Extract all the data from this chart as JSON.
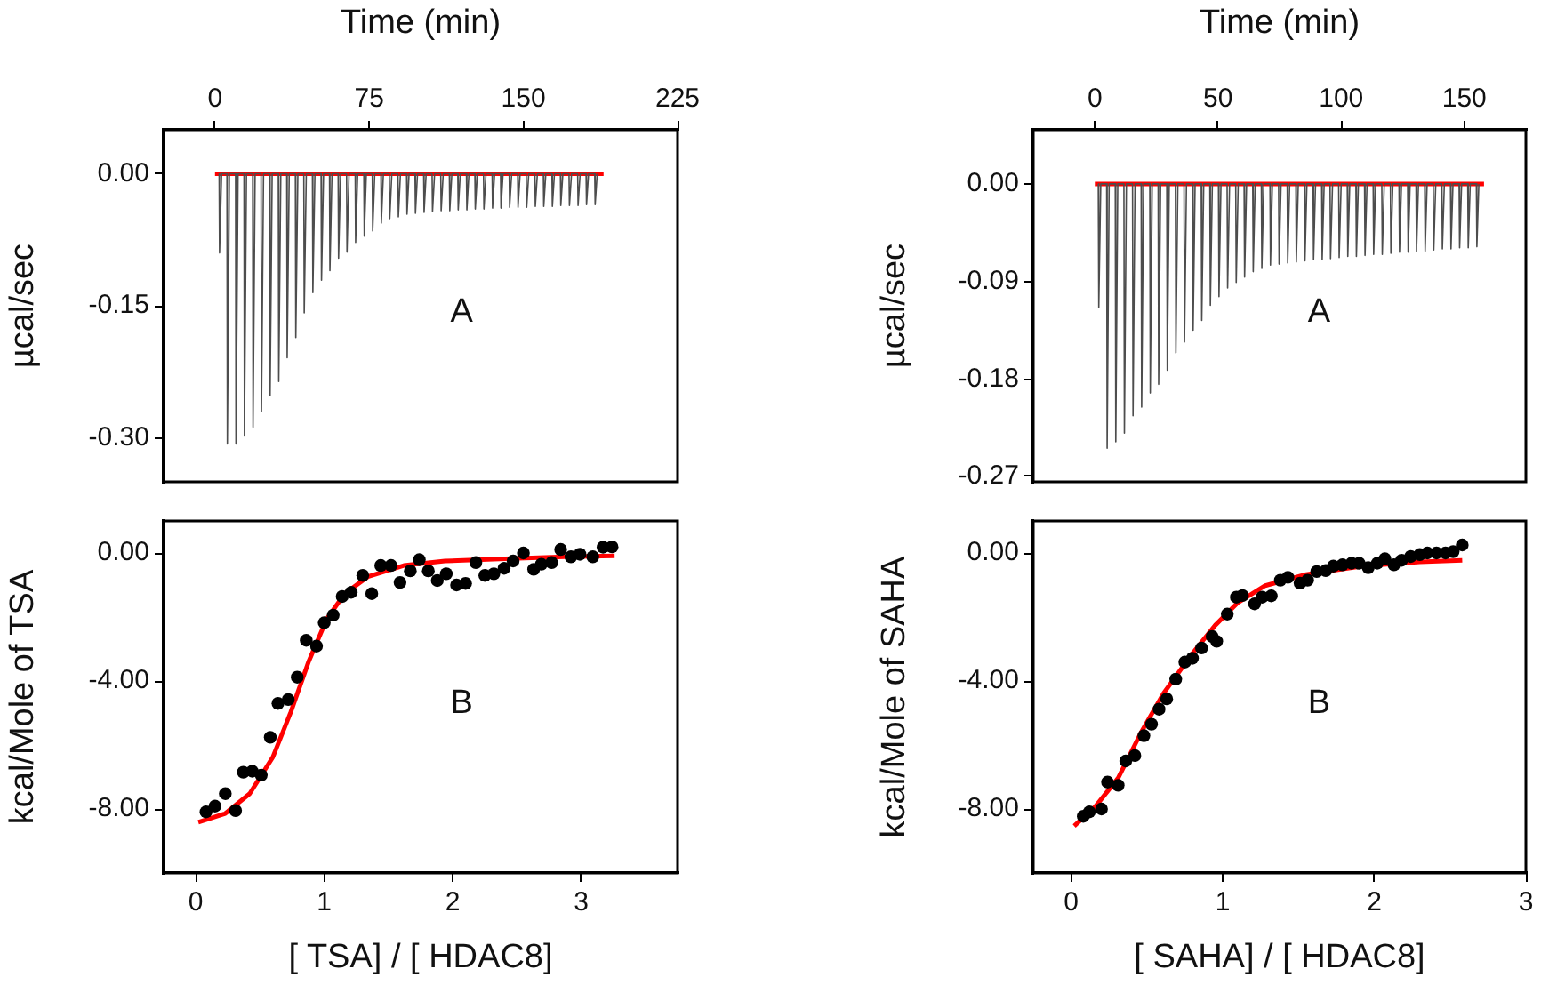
{
  "chart_data": [
    {
      "type": "line",
      "xlabel": "Time (min)",
      "ylabel": "µcal/sec",
      "xlim": [
        -25,
        225
      ],
      "xticks": [
        0,
        75,
        150,
        225
      ],
      "ylim": [
        -0.35,
        0.05
      ],
      "yticks": [
        {
          "value": 0,
          "label": "0.00"
        },
        {
          "value": -0.15,
          "label": "-0.15"
        },
        {
          "value": -0.3,
          "label": "-0.30"
        }
      ],
      "marker": "none",
      "annotations": [
        "A"
      ],
      "series": [
        {
          "color": "#4d4d4d",
          "x": [
            2.0,
            2.2,
            3.2,
            5.8,
            6.0,
            7.0,
            10.0,
            10.2,
            11.2,
            14.1,
            14.3,
            15.3,
            18.3,
            18.5,
            19.5,
            22.4,
            22.6,
            23.6,
            26.6,
            26.8,
            27.8,
            30.8,
            31.0,
            32.0,
            34.9,
            35.1,
            36.1,
            39.1,
            39.3,
            40.3,
            43.2,
            43.4,
            44.4,
            47.4,
            47.6,
            48.6,
            51.6,
            51.8,
            52.8,
            55.7,
            55.9,
            56.9,
            59.9,
            60.1,
            61.1,
            64.0,
            64.2,
            65.2,
            68.2,
            68.4,
            69.4,
            72.4,
            72.6,
            73.6,
            76.5,
            76.7,
            77.7,
            80.7,
            80.9,
            81.9,
            84.8,
            85.0,
            86.0,
            89.0,
            89.2,
            90.2,
            93.2,
            93.4,
            94.4,
            97.3,
            97.5,
            98.5,
            101.5,
            101.7,
            102.7,
            105.6,
            105.8,
            106.8,
            109.8,
            110.0,
            111.0,
            114.0,
            114.2,
            115.2,
            118.1,
            118.3,
            119.3,
            122.3,
            122.5,
            123.5,
            126.4,
            126.6,
            127.6,
            130.6,
            130.8,
            131.8,
            134.8,
            135.0,
            136.0,
            138.9,
            139.1,
            140.1,
            143.1,
            143.3,
            144.3,
            147.2,
            147.4,
            148.4,
            151.4,
            151.6,
            152.6,
            155.6,
            155.8,
            156.8,
            159.7,
            159.9,
            160.9,
            163.9,
            164.1,
            165.1,
            168.0,
            168.2,
            169.2,
            172.2,
            172.4,
            173.4,
            176.4,
            176.6,
            177.6,
            180.5,
            180.7,
            181.7,
            184.7,
            184.9,
            185.9
          ],
          "values": [
            0,
            -0.09,
            0,
            0,
            -0.307,
            0,
            0,
            -0.307,
            0,
            0,
            -0.298,
            0,
            0,
            -0.288,
            0,
            0,
            -0.27,
            0,
            0,
            -0.252,
            0,
            0,
            -0.236,
            0,
            0,
            -0.209,
            0,
            0,
            -0.186,
            0,
            0,
            -0.158,
            0,
            0,
            -0.135,
            0,
            0,
            -0.121,
            0,
            0,
            -0.11,
            0,
            0,
            -0.096,
            0,
            0,
            -0.089,
            0,
            0,
            -0.078,
            0,
            0,
            -0.071,
            0,
            0,
            -0.065,
            0,
            0,
            -0.056,
            0,
            0,
            -0.051,
            0,
            0,
            -0.049,
            0,
            0,
            -0.046,
            0,
            0,
            -0.045,
            0,
            0,
            -0.044,
            0,
            0,
            -0.043,
            0,
            0,
            -0.042,
            0,
            0,
            -0.042,
            0,
            0,
            -0.041,
            0,
            0,
            -0.041,
            0,
            0,
            -0.04,
            0,
            0,
            -0.04,
            0,
            0,
            -0.039,
            0,
            0,
            -0.039,
            0,
            0,
            -0.038,
            0,
            0,
            -0.038,
            0,
            0,
            -0.038,
            0,
            0,
            -0.037,
            0,
            0,
            -0.037,
            0,
            0,
            -0.037,
            0,
            0,
            -0.036,
            0,
            0,
            -0.036,
            0,
            0,
            -0.036,
            0,
            0,
            -0.035,
            0,
            0,
            -0.035,
            0
          ]
        },
        {
          "color": "#ff0000",
          "x": [
            0,
            189
          ],
          "values": [
            0,
            0
          ]
        }
      ]
    },
    {
      "type": "scatter",
      "xlabel": "[ TSA] / [ HDAC8]",
      "ylabel": "kcal/Mole of TSA",
      "xlim": [
        -0.25,
        3.75
      ],
      "xticks": [
        0,
        1,
        2,
        3
      ],
      "ylim": [
        -10,
        1
      ],
      "yticks": [
        {
          "value": 0,
          "label": "0.00"
        },
        {
          "value": -4,
          "label": "-4.00"
        },
        {
          "value": -8,
          "label": "-8.00"
        }
      ],
      "marker": "circle",
      "annotations": [
        "B"
      ],
      "series": [
        {
          "color": "#000000",
          "x": [
            0.08,
            0.15,
            0.23,
            0.31,
            0.37,
            0.44,
            0.51,
            0.58,
            0.64,
            0.72,
            0.79,
            0.86,
            0.94,
            1.0,
            1.07,
            1.14,
            1.21,
            1.3,
            1.37,
            1.44,
            1.52,
            1.59,
            1.67,
            1.74,
            1.81,
            1.88,
            1.95,
            2.03,
            2.1,
            2.18,
            2.25,
            2.32,
            2.4,
            2.47,
            2.55,
            2.63,
            2.69,
            2.77,
            2.84,
            2.92,
            2.99,
            3.09,
            3.17,
            3.24
          ],
          "values": [
            -8.09,
            -7.91,
            -7.52,
            -8.05,
            -6.85,
            -6.82,
            -6.94,
            -5.76,
            -4.7,
            -4.58,
            -3.88,
            -2.73,
            -2.91,
            -2.18,
            -1.94,
            -1.36,
            -1.23,
            -0.7,
            -1.27,
            -0.39,
            -0.39,
            -0.92,
            -0.56,
            -0.21,
            -0.56,
            -0.86,
            -0.65,
            -1.0,
            -0.95,
            -0.3,
            -0.7,
            -0.65,
            -0.48,
            -0.25,
            0.0,
            -0.51,
            -0.35,
            -0.3,
            0.11,
            -0.12,
            -0.04,
            -0.12,
            0.18,
            0.19
          ]
        },
        {
          "type": "line",
          "marker": "none",
          "color": "#ff0000",
          "x": [
            0.02,
            0.23,
            0.42,
            0.6,
            0.74,
            0.88,
            1.02,
            1.16,
            1.34,
            1.62,
            1.94,
            2.41,
            2.87,
            3.26
          ],
          "values": [
            -8.41,
            -8.14,
            -7.52,
            -6.38,
            -4.97,
            -3.38,
            -2.06,
            -1.27,
            -0.74,
            -0.39,
            -0.25,
            -0.18,
            -0.12,
            -0.09
          ]
        }
      ]
    },
    {
      "type": "line",
      "xlabel": "Time (min)",
      "ylabel": "µcal/sec",
      "xlim": [
        -25,
        175
      ],
      "xticks": [
        0,
        50,
        100,
        150
      ],
      "ylim": [
        -0.275,
        0.05
      ],
      "yticks": [
        {
          "value": 0,
          "label": "0.00"
        },
        {
          "value": -0.09,
          "label": "-0.09"
        },
        {
          "value": -0.18,
          "label": "-0.18"
        },
        {
          "value": -0.27,
          "label": "-0.27"
        }
      ],
      "marker": "none",
      "annotations": [
        "A"
      ],
      "series": [
        {
          "color": "#4d4d4d",
          "x": [
            1.4,
            1.6,
            2.4,
            4.8,
            5.0,
            5.8,
            8.3,
            8.5,
            9.3,
            11.8,
            12.0,
            12.8,
            15.3,
            15.5,
            16.3,
            18.8,
            19.0,
            19.8,
            22.3,
            22.5,
            23.3,
            25.7,
            25.9,
            26.7,
            29.2,
            29.4,
            30.2,
            32.7,
            32.9,
            33.7,
            36.2,
            36.4,
            37.2,
            39.7,
            39.9,
            40.7,
            43.2,
            43.4,
            44.2,
            46.7,
            46.9,
            47.7,
            50.2,
            50.4,
            51.2,
            53.7,
            53.9,
            54.7,
            57.2,
            57.4,
            58.2,
            60.6,
            60.8,
            61.6,
            64.1,
            64.3,
            65.1,
            67.6,
            67.8,
            68.6,
            71.1,
            71.3,
            72.1,
            74.6,
            74.8,
            75.6,
            78.1,
            78.3,
            79.1,
            81.6,
            81.8,
            82.6,
            85.1,
            85.3,
            86.1,
            88.6,
            88.8,
            89.6,
            92.1,
            92.3,
            93.1,
            95.5,
            95.7,
            96.5,
            99.0,
            99.2,
            100.0,
            102.5,
            102.7,
            103.5,
            106.0,
            106.2,
            107.0,
            109.5,
            109.7,
            110.5,
            113.0,
            113.2,
            114.0,
            116.5,
            116.7,
            117.5,
            120.0,
            120.2,
            121.0,
            123.5,
            123.7,
            124.5,
            127.0,
            127.2,
            128.0,
            130.4,
            130.6,
            131.4,
            133.9,
            134.1,
            134.9,
            137.4,
            137.6,
            138.4,
            140.9,
            141.1,
            141.9,
            144.4,
            144.6,
            145.4,
            147.9,
            148.1,
            148.9,
            151.4,
            151.6,
            152.4,
            154.9,
            155.1,
            155.9
          ],
          "values": [
            0,
            -0.114,
            0,
            0,
            -0.244,
            0,
            0,
            -0.238,
            0,
            0,
            -0.23,
            0,
            0,
            -0.214,
            0,
            0,
            -0.206,
            0,
            0,
            -0.193,
            0,
            0,
            -0.185,
            0,
            0,
            -0.172,
            0,
            0,
            -0.156,
            0,
            0,
            -0.146,
            0,
            0,
            -0.135,
            0,
            0,
            -0.126,
            0,
            0,
            -0.112,
            0,
            0,
            -0.104,
            0,
            0,
            -0.096,
            0,
            0,
            -0.091,
            0,
            0,
            -0.086,
            0,
            0,
            -0.081,
            0,
            0,
            -0.078,
            0,
            0,
            -0.075,
            0,
            0,
            -0.074,
            0,
            0,
            -0.073,
            0,
            0,
            -0.072,
            0,
            0,
            -0.071,
            0,
            0,
            -0.07,
            0,
            0,
            -0.07,
            0,
            0,
            -0.069,
            0,
            0,
            -0.068,
            0,
            0,
            -0.067,
            0,
            0,
            -0.067,
            0,
            0,
            -0.066,
            0,
            0,
            -0.065,
            0,
            0,
            -0.065,
            0,
            0,
            -0.064,
            0,
            0,
            -0.063,
            0,
            0,
            -0.063,
            0,
            0,
            -0.062,
            0,
            0,
            -0.062,
            0,
            0,
            -0.061,
            0,
            0,
            -0.06,
            0,
            0,
            -0.06,
            0,
            0,
            -0.059,
            0,
            0,
            -0.059,
            0,
            0,
            -0.058,
            0
          ]
        },
        {
          "color": "#ff0000",
          "x": [
            0,
            158
          ],
          "values": [
            0,
            0
          ]
        }
      ]
    },
    {
      "type": "scatter",
      "xlabel": "[ SAHA] / [ HDAC8]",
      "ylabel": "kcal/Mole of SAHA",
      "xlim": [
        -0.25,
        3
      ],
      "xticks": [
        0,
        1,
        2,
        3
      ],
      "ylim": [
        -10,
        1
      ],
      "yticks": [
        {
          "value": 0,
          "label": "0.00"
        },
        {
          "value": -4,
          "label": "-4.00"
        },
        {
          "value": -8,
          "label": "-8.00"
        }
      ],
      "marker": "circle",
      "annotations": [
        "B"
      ],
      "series": [
        {
          "color": "#000000",
          "x": [
            0.08,
            0.12,
            0.2,
            0.24,
            0.31,
            0.36,
            0.42,
            0.48,
            0.53,
            0.58,
            0.63,
            0.69,
            0.75,
            0.8,
            0.86,
            0.93,
            0.96,
            1.03,
            1.09,
            1.13,
            1.21,
            1.26,
            1.32,
            1.38,
            1.43,
            1.51,
            1.56,
            1.62,
            1.68,
            1.73,
            1.79,
            1.85,
            1.9,
            1.96,
            2.02,
            2.07,
            2.13,
            2.18,
            2.24,
            2.3,
            2.35,
            2.41,
            2.47,
            2.52,
            2.58
          ],
          "values": [
            -8.23,
            -8.09,
            -8.0,
            -7.16,
            -7.26,
            -6.5,
            -6.33,
            -5.71,
            -5.35,
            -4.88,
            -4.56,
            -3.94,
            -3.41,
            -3.29,
            -2.97,
            -2.61,
            -2.76,
            -1.91,
            -1.38,
            -1.33,
            -1.59,
            -1.38,
            -1.34,
            -0.85,
            -0.76,
            -0.94,
            -0.85,
            -0.58,
            -0.55,
            -0.41,
            -0.37,
            -0.32,
            -0.32,
            -0.46,
            -0.32,
            -0.18,
            -0.37,
            -0.23,
            -0.11,
            -0.05,
            0.0,
            0.0,
            0.0,
            0.04,
            0.25
          ]
        },
        {
          "type": "line",
          "marker": "none",
          "color": "#ff0000",
          "x": [
            0.02,
            0.16,
            0.31,
            0.46,
            0.61,
            0.8,
            0.95,
            1.1,
            1.28,
            1.55,
            1.92,
            2.3,
            2.58
          ],
          "values": [
            -8.53,
            -7.92,
            -7.03,
            -5.62,
            -4.38,
            -3.14,
            -2.26,
            -1.55,
            -1.02,
            -0.67,
            -0.41,
            -0.28,
            -0.23
          ]
        }
      ]
    }
  ]
}
